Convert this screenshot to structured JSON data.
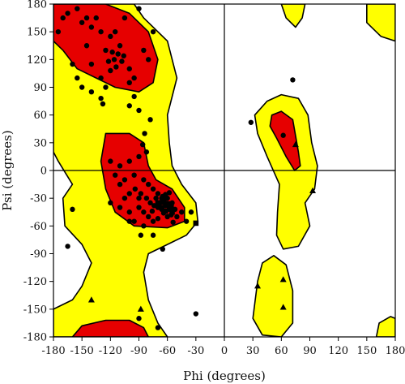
{
  "chart_data": {
    "type": "scatter",
    "title": "",
    "xlabel": "Phi (degrees)",
    "ylabel": "Psi (degrees)",
    "xlim": [
      -180,
      180
    ],
    "ylim": [
      -180,
      180
    ],
    "xticks": [
      -180,
      -150,
      -120,
      -90,
      -60,
      -30,
      0,
      30,
      60,
      90,
      120,
      150,
      180
    ],
    "yticks": [
      -180,
      -150,
      -120,
      -90,
      -60,
      -30,
      0,
      30,
      60,
      90,
      120,
      150,
      180
    ],
    "zero_lines": true,
    "region_colors": {
      "favoured": "#e60000",
      "allowed": "#ffff00",
      "generous": "#ffffff",
      "outline": "#000000"
    },
    "allowed_regions": [
      [
        [
          -180,
          180
        ],
        [
          -95,
          180
        ],
        [
          -85,
          165
        ],
        [
          -60,
          140
        ],
        [
          -50,
          100
        ],
        [
          -60,
          60
        ],
        [
          -58,
          30
        ],
        [
          -55,
          5
        ],
        [
          -45,
          -15
        ],
        [
          -30,
          -35
        ],
        [
          -28,
          -55
        ],
        [
          -40,
          -70
        ],
        [
          -60,
          -80
        ],
        [
          -80,
          -90
        ],
        [
          -85,
          -110
        ],
        [
          -80,
          -140
        ],
        [
          -70,
          -165
        ],
        [
          -60,
          -180
        ],
        [
          -180,
          -180
        ],
        [
          -180,
          -150
        ],
        [
          -160,
          -140
        ],
        [
          -150,
          -125
        ],
        [
          -140,
          -100
        ],
        [
          -150,
          -80
        ],
        [
          -168,
          -60
        ],
        [
          -170,
          -30
        ],
        [
          -160,
          -15
        ],
        [
          -175,
          10
        ],
        [
          -180,
          20
        ]
      ],
      [
        [
          45,
          75
        ],
        [
          60,
          82
        ],
        [
          78,
          78
        ],
        [
          88,
          60
        ],
        [
          92,
          30
        ],
        [
          98,
          5
        ],
        [
          95,
          -20
        ],
        [
          85,
          -35
        ],
        [
          90,
          -60
        ],
        [
          78,
          -82
        ],
        [
          62,
          -85
        ],
        [
          55,
          -70
        ],
        [
          56,
          -45
        ],
        [
          58,
          -15
        ],
        [
          45,
          15
        ],
        [
          35,
          40
        ],
        [
          32,
          60
        ]
      ],
      [
        [
          150,
          180
        ],
        [
          150,
          160
        ],
        [
          165,
          145
        ],
        [
          180,
          140
        ],
        [
          180,
          180
        ]
      ],
      [
        [
          60,
          180
        ],
        [
          65,
          165
        ],
        [
          75,
          155
        ],
        [
          82,
          165
        ],
        [
          85,
          180
        ]
      ],
      [
        [
          180,
          -180
        ],
        [
          160,
          -180
        ],
        [
          163,
          -165
        ],
        [
          175,
          -158
        ],
        [
          180,
          -160
        ]
      ],
      [
        [
          60,
          -180
        ],
        [
          40,
          -178
        ],
        [
          30,
          -160
        ],
        [
          35,
          -120
        ],
        [
          40,
          -100
        ],
        [
          52,
          -92
        ],
        [
          65,
          -102
        ],
        [
          72,
          -130
        ],
        [
          72,
          -165
        ]
      ]
    ],
    "favoured_regions": [
      [
        [
          -180,
          180
        ],
        [
          -125,
          180
        ],
        [
          -100,
          170
        ],
        [
          -80,
          150
        ],
        [
          -70,
          120
        ],
        [
          -75,
          95
        ],
        [
          -90,
          85
        ],
        [
          -115,
          90
        ],
        [
          -135,
          100
        ],
        [
          -155,
          110
        ],
        [
          -170,
          130
        ],
        [
          -180,
          140
        ]
      ],
      [
        [
          -125,
          40
        ],
        [
          -100,
          40
        ],
        [
          -85,
          30
        ],
        [
          -80,
          5
        ],
        [
          -72,
          -10
        ],
        [
          -55,
          -20
        ],
        [
          -42,
          -40
        ],
        [
          -42,
          -55
        ],
        [
          -60,
          -62
        ],
        [
          -95,
          -60
        ],
        [
          -115,
          -45
        ],
        [
          -125,
          -20
        ],
        [
          -130,
          10
        ]
      ],
      [
        [
          50,
          60
        ],
        [
          60,
          64
        ],
        [
          72,
          55
        ],
        [
          78,
          20
        ],
        [
          80,
          5
        ],
        [
          74,
          0
        ],
        [
          65,
          15
        ],
        [
          55,
          35
        ],
        [
          48,
          48
        ]
      ],
      [
        [
          -160,
          -180
        ],
        [
          -150,
          -168
        ],
        [
          -125,
          -162
        ],
        [
          -100,
          -162
        ],
        [
          -85,
          -170
        ],
        [
          -80,
          -180
        ]
      ]
    ],
    "series": [
      {
        "marker": "circle",
        "points": [
          [
            -170,
            165
          ],
          [
            -165,
            170
          ],
          [
            -155,
            175
          ],
          [
            -150,
            160
          ],
          [
            -145,
            165
          ],
          [
            -140,
            155
          ],
          [
            -130,
            150
          ],
          [
            -120,
            145
          ],
          [
            -115,
            150
          ],
          [
            -110,
            135
          ],
          [
            -105,
            165
          ],
          [
            -125,
            130
          ],
          [
            -118,
            128
          ],
          [
            -112,
            126
          ],
          [
            -106,
            124
          ],
          [
            -116,
            120
          ],
          [
            -122,
            118
          ],
          [
            -108,
            118
          ],
          [
            -114,
            112
          ],
          [
            -120,
            108
          ],
          [
            -100,
            110
          ],
          [
            -100,
            95
          ],
          [
            -95,
            100
          ],
          [
            -95,
            80
          ],
          [
            -100,
            70
          ],
          [
            -90,
            65
          ],
          [
            -130,
            100
          ],
          [
            -125,
            90
          ],
          [
            -140,
            85
          ],
          [
            -150,
            90
          ],
          [
            -155,
            100
          ],
          [
            -160,
            115
          ],
          [
            -130,
            78
          ],
          [
            -128,
            72
          ],
          [
            -85,
            130
          ],
          [
            -80,
            120
          ],
          [
            -75,
            150
          ],
          [
            -90,
            175
          ],
          [
            -135,
            165
          ],
          [
            -145,
            135
          ],
          [
            -140,
            115
          ],
          [
            -175,
            150
          ],
          [
            -78,
            55
          ],
          [
            -84,
            40
          ],
          [
            -86,
            28
          ],
          [
            -82,
            20
          ],
          [
            -90,
            15
          ],
          [
            -100,
            10
          ],
          [
            -110,
            5
          ],
          [
            -120,
            10
          ],
          [
            -95,
            -5
          ],
          [
            -85,
            -10
          ],
          [
            -80,
            -15
          ],
          [
            -75,
            -20
          ],
          [
            -70,
            -25
          ],
          [
            -65,
            -28
          ],
          [
            -60,
            -30
          ],
          [
            -55,
            -35
          ],
          [
            -72,
            -30
          ],
          [
            -68,
            -35
          ],
          [
            -62,
            -38
          ],
          [
            -58,
            -42
          ],
          [
            -66,
            -42
          ],
          [
            -70,
            -40
          ],
          [
            -74,
            -38
          ],
          [
            -64,
            -46
          ],
          [
            -60,
            -50
          ],
          [
            -56,
            -48
          ],
          [
            -52,
            -42
          ],
          [
            -78,
            -35
          ],
          [
            -82,
            -30
          ],
          [
            -88,
            -25
          ],
          [
            -94,
            -20
          ],
          [
            -100,
            -25
          ],
          [
            -105,
            -30
          ],
          [
            -110,
            -40
          ],
          [
            -100,
            -45
          ],
          [
            -90,
            -40
          ],
          [
            -85,
            -45
          ],
          [
            -80,
            -50
          ],
          [
            -75,
            -55
          ],
          [
            -70,
            -52
          ],
          [
            -66,
            -30
          ],
          [
            -62,
            -26
          ],
          [
            -58,
            -24
          ],
          [
            -50,
            -50
          ],
          [
            -45,
            -45
          ],
          [
            -40,
            -55
          ],
          [
            -35,
            -45
          ],
          [
            -110,
            -15
          ],
          [
            -115,
            -5
          ],
          [
            -100,
            -55
          ],
          [
            -85,
            -60
          ],
          [
            -88,
            -70
          ],
          [
            -75,
            -70
          ],
          [
            -65,
            -85
          ],
          [
            -120,
            -35
          ],
          [
            -95,
            -55
          ],
          [
            -105,
            -10
          ],
          [
            -90,
            -30
          ],
          [
            -76,
            -44
          ],
          [
            -54,
            -56
          ],
          [
            -160,
            -42
          ],
          [
            -165,
            -82
          ],
          [
            -70,
            -170
          ],
          [
            -90,
            -160
          ],
          [
            -30,
            -155
          ],
          [
            28,
            52
          ],
          [
            62,
            38
          ],
          [
            72,
            98
          ]
        ]
      },
      {
        "marker": "square",
        "points": [
          [
            -70,
            -35
          ],
          [
            -66,
            -40
          ],
          [
            -62,
            -44
          ],
          [
            -58,
            -38
          ],
          [
            -55,
            -45
          ],
          [
            -60,
            -36
          ],
          [
            -64,
            -34
          ],
          [
            -56,
            -40
          ],
          [
            -62,
            -30
          ],
          [
            -30,
            -57
          ]
        ]
      },
      {
        "marker": "triangle",
        "points": [
          [
            -140,
            -140
          ],
          [
            -88,
            -150
          ],
          [
            75,
            28
          ],
          [
            93,
            -22
          ],
          [
            35,
            -125
          ],
          [
            62,
            -118
          ],
          [
            62,
            -148
          ]
        ]
      }
    ]
  }
}
